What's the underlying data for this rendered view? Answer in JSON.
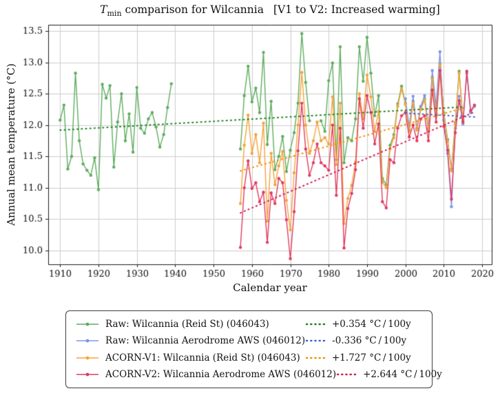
{
  "title": {
    "var": "T",
    "sub": "min",
    "rest": " comparison for Wilcannia",
    "bracket": "[V1 to V2: Increased warming]"
  },
  "chart_data": {
    "type": "line",
    "xlabel": "Calendar year",
    "ylabel": "Annual mean temperature (°C)",
    "xlim": [
      1906.9,
      2022.5
    ],
    "ylim": [
      9.78,
      13.6
    ],
    "xticks": [
      1910,
      1920,
      1930,
      1940,
      1950,
      1960,
      1970,
      1980,
      1990,
      2000,
      2010,
      2020
    ],
    "yticks": [
      10.0,
      10.5,
      11.0,
      11.5,
      12.0,
      12.5,
      13.0,
      13.5
    ],
    "grid": true,
    "grid_color": "#cdcdcd",
    "legend_position": "below-axes",
    "series": [
      {
        "name": "Raw: Wilcannia (Reid St) (046043)",
        "color": "#5fad5f",
        "start_year": 1910,
        "values": [
          12.08,
          12.32,
          11.3,
          11.5,
          12.83,
          11.75,
          11.38,
          11.28,
          11.2,
          11.48,
          10.97,
          12.65,
          12.43,
          12.63,
          11.33,
          12.05,
          12.5,
          11.75,
          12.18,
          11.57,
          12.6,
          11.95,
          11.87,
          12.1,
          12.2,
          11.97,
          11.65,
          11.85,
          12.28,
          12.66,
          null,
          null,
          null,
          null,
          null,
          null,
          null,
          null,
          null,
          null,
          null,
          null,
          null,
          null,
          null,
          null,
          null,
          11.62,
          12.47,
          12.94,
          12.37,
          12.59,
          12.2,
          13.16,
          11.69,
          12.38,
          11.29,
          11.5,
          11.82,
          11.26,
          11.6,
          11.88,
          12.35,
          13.46,
          12.68,
          12.07,
          null,
          null,
          12.07,
          11.9,
          12.71,
          12.99,
          11.45,
          13.25,
          11.4,
          11.8,
          11.75,
          12.1,
          13.25,
          12.7,
          13.4,
          12.83,
          12.15,
          12.47,
          11.15,
          11.05,
          11.68,
          11.85,
          12.34,
          12.62,
          12.35,
          11.93,
          12.38,
          11.95,
          12.28,
          12.42,
          11.92,
          12.76,
          12.18,
          12.98,
          12.2,
          11.77,
          11.3,
          12.04,
          12.86,
          12.08
        ],
        "trend": {
          "label": "+0.354 °C / 100y",
          "color": "#1e7d1e",
          "x": [
            1910,
            2015
          ],
          "y": [
            11.92,
            12.29
          ]
        }
      },
      {
        "name": "Raw: Wilcannia Aerodrome AWS (046012)",
        "color": "#7b96e8",
        "start_year": 2000,
        "values": [
          12.42,
          11.98,
          12.46,
          11.95,
          12.3,
          12.47,
          11.95,
          12.87,
          12.3,
          13.17,
          12.08,
          11.55,
          10.7,
          11.95,
          12.46,
          12.02,
          12.83,
          12.2,
          12.3
        ],
        "trend": {
          "label": "-0.336 °C / 100y",
          "color": "#3f5fd0",
          "x": [
            2000,
            2018
          ],
          "y": [
            12.19,
            12.13
          ]
        }
      },
      {
        "name": "ACORN-V1: Wilcannia (Reid St) (046043)",
        "color": "#f6a33c",
        "start_year": 1957,
        "values": [
          10.75,
          11.68,
          12.16,
          11.55,
          11.85,
          11.4,
          12.03,
          10.47,
          11.55,
          11.05,
          11.35,
          11.58,
          10.8,
          10.33,
          11.24,
          12.0,
          12.84,
          12.0,
          11.55,
          11.75,
          12.05,
          11.75,
          11.8,
          11.7,
          12.45,
          11.37,
          12.35,
          10.43,
          10.83,
          11.04,
          11.41,
          12.5,
          12.1,
          12.8,
          12.45,
          11.9,
          12.22,
          11.09,
          11.0,
          11.62,
          11.8,
          12.3,
          12.58,
          12.33,
          11.9,
          12.35,
          11.92,
          12.25,
          12.4,
          11.9,
          12.73,
          12.15,
          12.96,
          12.17,
          11.74,
          11.27,
          12.01,
          12.83,
          12.1
        ],
        "trend": {
          "label": "+1.727 °C / 100y",
          "color": "#ee9106",
          "x": [
            1957,
            2015
          ],
          "y": [
            11.27,
            12.27
          ]
        }
      },
      {
        "name": "ACORN-V2: Wilcannia Aerodrome AWS (046012)",
        "color": "#e23b60",
        "start_year": 1957,
        "values": [
          10.05,
          11.0,
          11.43,
          10.99,
          11.08,
          10.78,
          10.93,
          10.13,
          10.92,
          10.75,
          11.15,
          11.08,
          10.49,
          9.87,
          10.62,
          11.59,
          12.35,
          11.62,
          11.2,
          11.4,
          11.7,
          11.4,
          11.35,
          11.28,
          12.0,
          10.88,
          11.95,
          10.04,
          10.67,
          10.91,
          11.29,
          12.42,
          11.95,
          12.47,
          12.2,
          11.7,
          12.02,
          10.78,
          10.68,
          11.45,
          11.4,
          11.95,
          12.15,
          12.2,
          11.81,
          12.0,
          11.75,
          12.1,
          12.15,
          11.75,
          12.56,
          12.05,
          12.87,
          11.98,
          11.6,
          10.82,
          11.88,
          12.39,
          12.05,
          12.86,
          12.23,
          12.32
        ],
        "trend": {
          "label": "+2.644 °C / 100y",
          "color": "#d6164a",
          "x": [
            1957,
            2018
          ],
          "y": [
            10.6,
            12.21
          ]
        }
      }
    ]
  }
}
